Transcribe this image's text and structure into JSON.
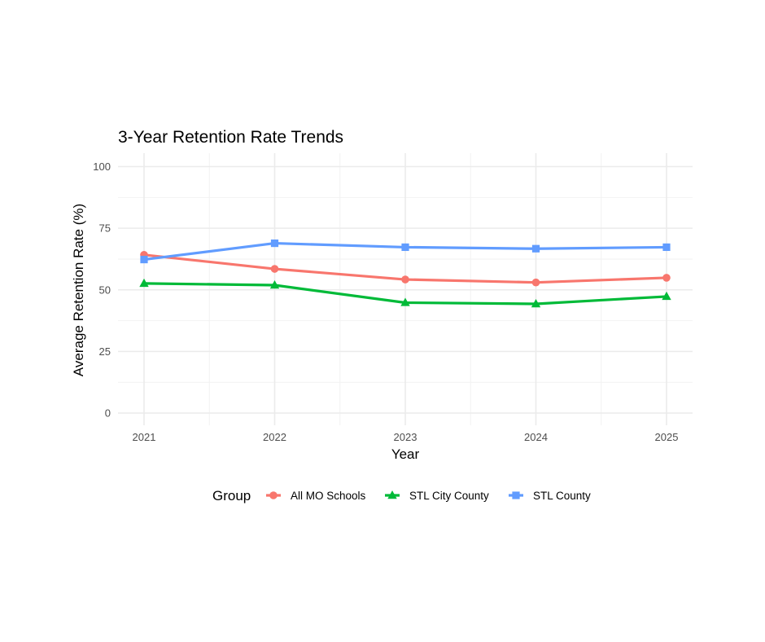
{
  "chart_data": {
    "type": "line",
    "title": "3-Year Retention Rate Trends",
    "xlabel": "Year",
    "ylabel": "Average Retention Rate (%)",
    "x": [
      2021,
      2022,
      2023,
      2024,
      2025
    ],
    "x_tick_labels": [
      "2021",
      "2022",
      "2023",
      "2024",
      "2025"
    ],
    "ylim": [
      0,
      100
    ],
    "y_ticks": [
      0,
      25,
      50,
      75,
      100
    ],
    "y_tick_labels": [
      "0",
      "25",
      "50",
      "75",
      "100"
    ],
    "grid": true,
    "legend": {
      "title": "Group",
      "position": "bottom"
    },
    "series": [
      {
        "name": "All MO Schools",
        "color": "#F8766D",
        "marker": "circle",
        "values": [
          64.2,
          58.5,
          54.2,
          53.0,
          54.9
        ]
      },
      {
        "name": "STL City County",
        "color": "#00BA38",
        "marker": "triangle",
        "values": [
          52.6,
          51.9,
          44.8,
          44.3,
          47.3
        ]
      },
      {
        "name": "STL County",
        "color": "#619CFF",
        "marker": "square",
        "values": [
          62.3,
          68.9,
          67.3,
          66.7,
          67.3
        ]
      }
    ]
  }
}
